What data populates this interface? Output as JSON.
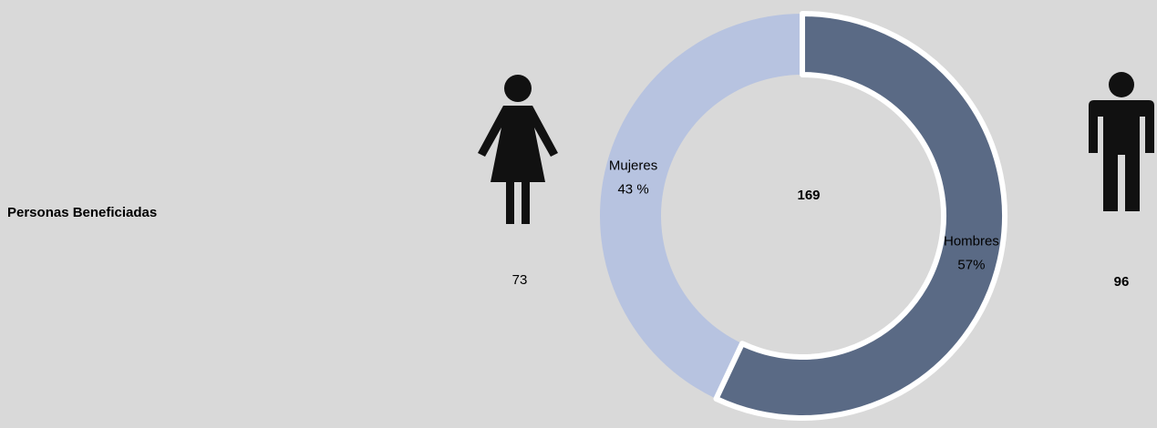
{
  "chart_data": {
    "type": "donut",
    "title": "Personas Beneficiadas",
    "categories": [
      "Hombres",
      "Mujeres"
    ],
    "values": [
      57,
      43
    ],
    "value_labels": [
      "57%",
      "43 %"
    ],
    "colors": [
      "#5a6a85",
      "#b7c3e0"
    ],
    "counts": [
      96,
      73
    ],
    "total": 169
  }
}
